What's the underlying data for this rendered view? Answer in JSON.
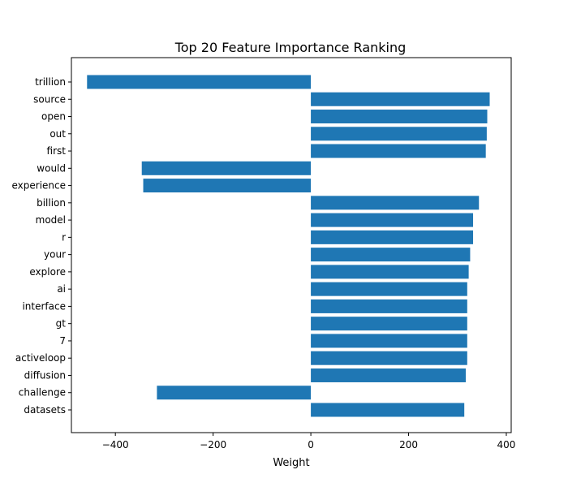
{
  "chart_data": {
    "type": "bar",
    "orientation": "horizontal",
    "title": "Top 20 Feature Importance Ranking",
    "xlabel": "Weight",
    "ylabel": "",
    "xlim": [
      -490,
      410
    ],
    "xticks": [
      -400,
      -200,
      0,
      200,
      400
    ],
    "xtick_labels": [
      "−400",
      "−200",
      "0",
      "200",
      "400"
    ],
    "grid": false,
    "bar_color": "#1f77b4",
    "categories": [
      "trillion",
      "source",
      "open",
      "out",
      "first",
      "would",
      "experience",
      "billion",
      "model",
      "r",
      "your",
      "explore",
      "ai",
      "interface",
      "gt",
      "7",
      "activeloop",
      "diffusion",
      "challenge",
      "datasets"
    ],
    "values": [
      -458,
      366,
      361,
      360,
      358,
      -346,
      -343,
      344,
      332,
      332,
      326,
      323,
      320,
      320,
      320,
      320,
      320,
      317,
      -315,
      314
    ]
  }
}
